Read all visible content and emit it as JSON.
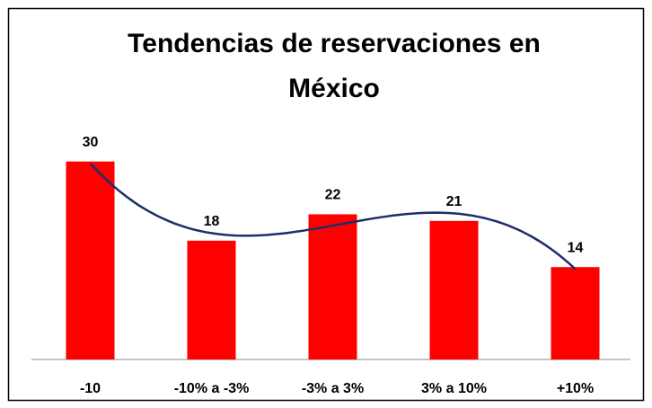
{
  "chart_data": {
    "type": "bar",
    "title": [
      "Tendencias de reservaciones en",
      "México"
    ],
    "categories": [
      "-10",
      "-10% a -3%",
      "-3% a 3%",
      "3% a 10%",
      "+10%"
    ],
    "values": [
      30,
      18,
      22,
      21,
      14
    ],
    "color": "#ff0000",
    "trendline_color": "#1f2d6b",
    "ylim": [
      0,
      35
    ]
  }
}
